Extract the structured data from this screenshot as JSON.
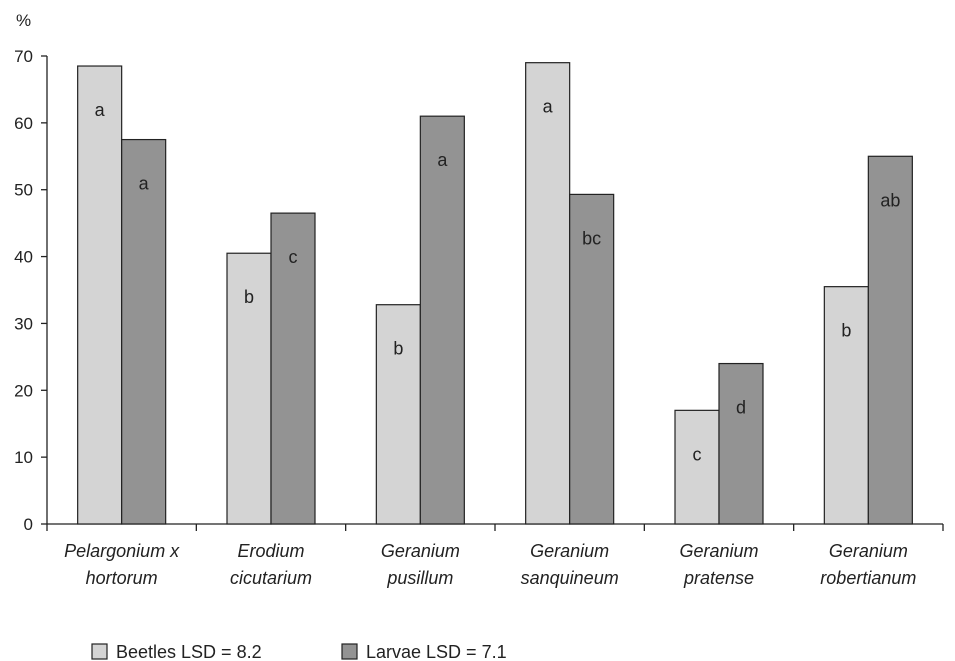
{
  "chart_data": {
    "type": "bar",
    "ylabel": "%",
    "ylim": [
      0,
      70
    ],
    "yticks": [
      0,
      10,
      20,
      30,
      40,
      50,
      60,
      70
    ],
    "grid": false,
    "legend_position": "bottom-left",
    "categories": [
      [
        "Pelargonium x",
        "hortorum"
      ],
      [
        "Erodium",
        "cicutarium"
      ],
      [
        "Geranium",
        "pusillum"
      ],
      [
        "Geranium",
        "sanquineum"
      ],
      [
        "Geranium",
        "pratense"
      ],
      [
        "Geranium",
        "robertianum"
      ]
    ],
    "series": [
      {
        "name": "Beetles LSD = 8.2",
        "color": "#d4d4d4",
        "values": [
          68.5,
          40.5,
          32.8,
          69,
          17,
          35.5
        ],
        "letters": [
          "a",
          "b",
          "b",
          "a",
          "c",
          "b"
        ]
      },
      {
        "name": "Larvae LSD = 7.1",
        "color": "#939393",
        "values": [
          57.5,
          46.5,
          61,
          49.3,
          24,
          55
        ],
        "letters": [
          "a",
          "c",
          "a",
          "bc",
          "d",
          "ab"
        ]
      }
    ]
  }
}
